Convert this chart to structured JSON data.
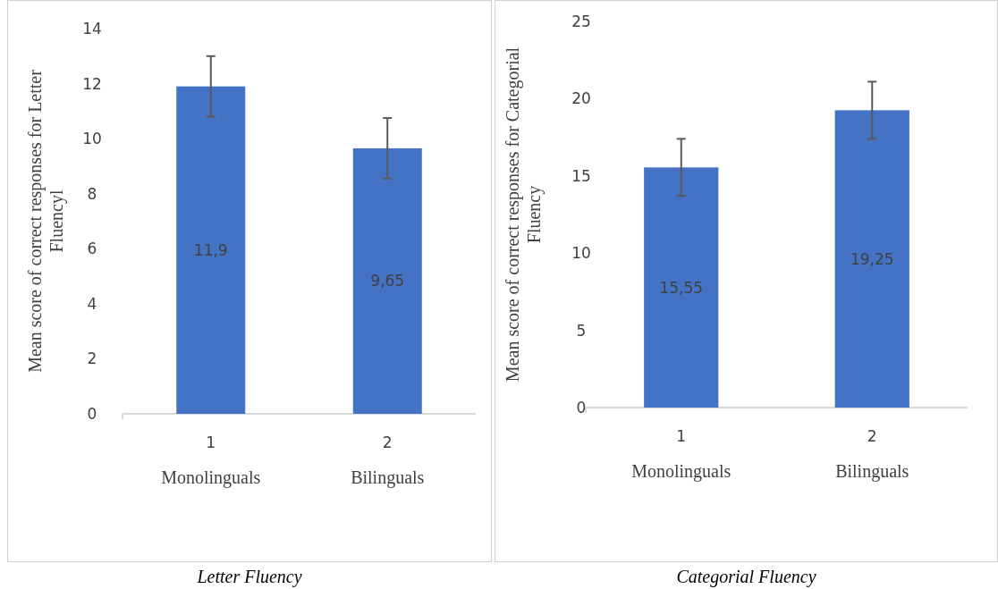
{
  "chart_data": [
    {
      "type": "bar",
      "title": "Letter Fluency",
      "ylabel": "Mean score of correct responses for Letter Fluencyl",
      "categories": [
        "1\nMonolinguals",
        "2\nBilinguals"
      ],
      "values": [
        11.9,
        9.65
      ],
      "errors": [
        1.1,
        1.1
      ],
      "value_labels": [
        "11,9",
        "9,65"
      ],
      "color": "#4472c4",
      "ylim": [
        0,
        14
      ],
      "yticks": [
        0,
        2,
        4,
        6,
        8,
        10,
        12,
        14
      ]
    },
    {
      "type": "bar",
      "title": "Categorial Fluency",
      "ylabel": "Mean score of correct responses for Categorial Fluency",
      "categories": [
        "1\nMonolinguals",
        "2\nBilinguals"
      ],
      "values": [
        15.55,
        19.25
      ],
      "errors": [
        1.85,
        1.85
      ],
      "value_labels": [
        "15,55",
        "19,25"
      ],
      "color": "#4472c4",
      "ylim": [
        0,
        25
      ],
      "yticks": [
        0,
        5,
        10,
        15,
        20,
        25
      ]
    }
  ]
}
